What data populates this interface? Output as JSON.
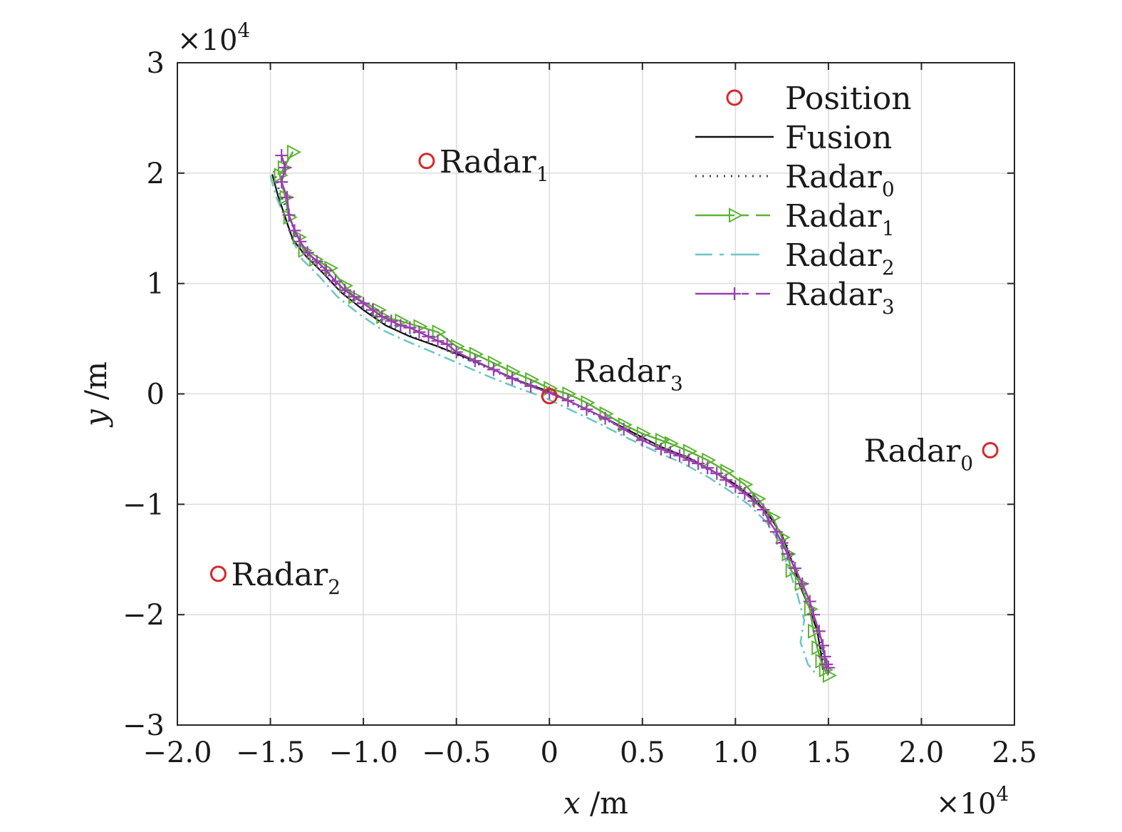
{
  "chart_data": {
    "type": "line",
    "title": "",
    "xlabel": {
      "var": "x",
      "unit": " /m"
    },
    "ylabel": {
      "var": "y",
      "unit": " /m"
    },
    "x_multiplier": "×10",
    "x_multiplier_exp": "4",
    "y_multiplier": "×10",
    "y_multiplier_exp": "4",
    "xlim": [
      -2.0,
      2.5
    ],
    "ylim": [
      -3,
      3
    ],
    "x_ticks": [
      -2.0,
      -1.5,
      -1.0,
      -0.5,
      0,
      0.5,
      1.0,
      1.5,
      2.0,
      2.5
    ],
    "x_tick_labels": [
      "−2.0",
      "−1.5",
      "−1.0",
      "−0.5",
      "0",
      "0.5",
      "1.0",
      "1.5",
      "2.0",
      "2.5"
    ],
    "y_ticks": [
      -3,
      -2,
      -1,
      0,
      1,
      2,
      3
    ],
    "y_tick_labels": [
      "−3",
      "−2",
      "−1",
      "0",
      "1",
      "2",
      "3"
    ],
    "grid": true,
    "legend_position": "top-right",
    "colors": {
      "position": "#d62728",
      "fusion": "#111111",
      "radar0": "#2b3fa0",
      "radar1": "#5ab432",
      "radar2": "#6cc5c5",
      "radar3": "#9b3fb0"
    },
    "positions": [
      {
        "name": "Radar",
        "sub": "0",
        "x": 2.37,
        "y": -0.51,
        "label_side": "left"
      },
      {
        "name": "Radar",
        "sub": "1",
        "x": -0.66,
        "y": 2.11,
        "label_side": "right"
      },
      {
        "name": "Radar",
        "sub": "2",
        "x": -1.78,
        "y": -1.63,
        "label_side": "right"
      },
      {
        "name": "Radar",
        "sub": "3",
        "x": 0.0,
        "y": -0.02,
        "label_side": "above"
      }
    ],
    "legend": [
      {
        "key": "position",
        "label": "Position",
        "sub": ""
      },
      {
        "key": "fusion",
        "label": "Fusion",
        "sub": ""
      },
      {
        "key": "radar0",
        "label": "Radar",
        "sub": "0"
      },
      {
        "key": "radar1",
        "label": "Radar",
        "sub": "1"
      },
      {
        "key": "radar2",
        "label": "Radar",
        "sub": "2"
      },
      {
        "key": "radar3",
        "label": "Radar",
        "sub": "3"
      }
    ],
    "series": [
      {
        "key": "fusion",
        "name": "Fusion",
        "x": [
          -1.49,
          -1.46,
          -1.42,
          -1.38,
          -1.31,
          -1.22,
          -1.12,
          -1.0,
          -0.88,
          -0.75,
          -0.6,
          -0.45,
          -0.3,
          -0.15,
          0.0,
          0.15,
          0.3,
          0.45,
          0.6,
          0.75,
          0.88,
          1.0,
          1.1,
          1.18,
          1.25,
          1.3,
          1.35,
          1.4,
          1.44,
          1.46,
          1.47
        ],
        "y": [
          1.99,
          1.8,
          1.6,
          1.4,
          1.25,
          1.1,
          0.92,
          0.76,
          0.62,
          0.52,
          0.43,
          0.33,
          0.22,
          0.11,
          0.02,
          -0.1,
          -0.22,
          -0.35,
          -0.48,
          -0.58,
          -0.7,
          -0.82,
          -0.95,
          -1.1,
          -1.28,
          -1.5,
          -1.75,
          -1.95,
          -2.15,
          -2.35,
          -2.5
        ]
      },
      {
        "key": "radar0",
        "name": "Radar0",
        "x": [
          -1.48,
          -1.45,
          -1.4,
          -1.36,
          -1.3,
          -1.21,
          -1.11,
          -0.99,
          -0.87,
          -0.74,
          -0.6,
          -0.45,
          -0.3,
          -0.15,
          0.0,
          0.15,
          0.3,
          0.45,
          0.6,
          0.75,
          0.88,
          1.0,
          1.11,
          1.19,
          1.26,
          1.31,
          1.36,
          1.41,
          1.45,
          1.47,
          1.48
        ],
        "y": [
          2.02,
          1.82,
          1.62,
          1.42,
          1.27,
          1.12,
          0.93,
          0.77,
          0.62,
          0.52,
          0.43,
          0.32,
          0.21,
          0.1,
          0.01,
          -0.11,
          -0.23,
          -0.36,
          -0.49,
          -0.59,
          -0.71,
          -0.83,
          -0.96,
          -1.12,
          -1.3,
          -1.52,
          -1.76,
          -1.96,
          -2.16,
          -2.36,
          -2.48
        ]
      },
      {
        "key": "radar1",
        "name": "Radar1",
        "x": [
          -1.43,
          -1.38,
          -1.45,
          -1.42,
          -1.4,
          -1.35,
          -1.32,
          -1.26,
          -1.18,
          -1.1,
          -1.05,
          -0.92,
          -0.9,
          -0.8,
          -0.7,
          -0.6,
          -0.5,
          -0.4,
          -0.3,
          -0.2,
          -0.1,
          0.0,
          0.1,
          0.2,
          0.3,
          0.4,
          0.5,
          0.6,
          0.65,
          0.75,
          0.85,
          0.95,
          1.05,
          1.12,
          1.2,
          1.25,
          1.28,
          1.3,
          1.35,
          1.4,
          1.42,
          1.44,
          1.46,
          1.48,
          1.5
        ],
        "y": [
          2.05,
          2.19,
          1.98,
          1.78,
          1.6,
          1.42,
          1.3,
          1.22,
          1.14,
          0.98,
          0.88,
          0.76,
          0.7,
          0.66,
          0.61,
          0.56,
          0.43,
          0.36,
          0.28,
          0.2,
          0.13,
          0.05,
          0.0,
          -0.08,
          -0.18,
          -0.28,
          -0.36,
          -0.42,
          -0.45,
          -0.52,
          -0.6,
          -0.7,
          -0.82,
          -0.95,
          -1.12,
          -1.3,
          -1.45,
          -1.6,
          -1.72,
          -1.95,
          -2.15,
          -2.3,
          -2.42,
          -2.5,
          -2.55
        ]
      },
      {
        "key": "radar2",
        "name": "Radar2",
        "x": [
          -1.5,
          -1.47,
          -1.42,
          -1.38,
          -1.33,
          -1.24,
          -1.14,
          -1.02,
          -0.9,
          -0.77,
          -0.63,
          -0.48,
          -0.33,
          -0.18,
          -0.03,
          0.12,
          0.27,
          0.42,
          0.57,
          0.72,
          0.85,
          0.97,
          1.07,
          1.16,
          1.23,
          1.28,
          1.33,
          1.37,
          1.35,
          1.39,
          1.44
        ],
        "y": [
          1.98,
          1.79,
          1.59,
          1.39,
          1.22,
          1.07,
          0.88,
          0.72,
          0.58,
          0.48,
          0.38,
          0.27,
          0.16,
          0.06,
          -0.03,
          -0.15,
          -0.27,
          -0.4,
          -0.52,
          -0.63,
          -0.75,
          -0.88,
          -1.0,
          -1.15,
          -1.32,
          -1.55,
          -1.8,
          -2.05,
          -2.25,
          -2.45,
          -2.55
        ]
      },
      {
        "key": "radar3",
        "name": "Radar3",
        "x": [
          -1.44,
          -1.42,
          -1.44,
          -1.41,
          -1.4,
          -1.37,
          -1.34,
          -1.3,
          -1.25,
          -1.2,
          -1.15,
          -1.1,
          -1.05,
          -1.0,
          -0.95,
          -0.9,
          -0.85,
          -0.8,
          -0.75,
          -0.7,
          -0.65,
          -0.6,
          -0.55,
          -0.5,
          -0.4,
          -0.3,
          -0.2,
          -0.1,
          0.0,
          0.1,
          0.2,
          0.3,
          0.4,
          0.5,
          0.6,
          0.65,
          0.7,
          0.75,
          0.8,
          0.85,
          0.9,
          0.95,
          1.0,
          1.05,
          1.1,
          1.15,
          1.18,
          1.22,
          1.25,
          1.28,
          1.32,
          1.36,
          1.4,
          1.42,
          1.45,
          1.47,
          1.48,
          1.49,
          1.5
        ],
        "y": [
          2.16,
          2.05,
          1.92,
          1.78,
          1.62,
          1.48,
          1.38,
          1.28,
          1.2,
          1.12,
          1.02,
          0.94,
          0.88,
          0.82,
          0.76,
          0.7,
          0.66,
          0.62,
          0.6,
          0.56,
          0.52,
          0.48,
          0.45,
          0.38,
          0.3,
          0.22,
          0.14,
          0.07,
          0.01,
          -0.06,
          -0.14,
          -0.22,
          -0.32,
          -0.42,
          -0.5,
          -0.53,
          -0.56,
          -0.6,
          -0.63,
          -0.67,
          -0.72,
          -0.78,
          -0.84,
          -0.9,
          -0.97,
          -1.05,
          -1.15,
          -1.25,
          -1.35,
          -1.45,
          -1.58,
          -1.72,
          -1.88,
          -2.0,
          -2.15,
          -2.28,
          -2.38,
          -2.45,
          -2.48
        ]
      }
    ]
  }
}
